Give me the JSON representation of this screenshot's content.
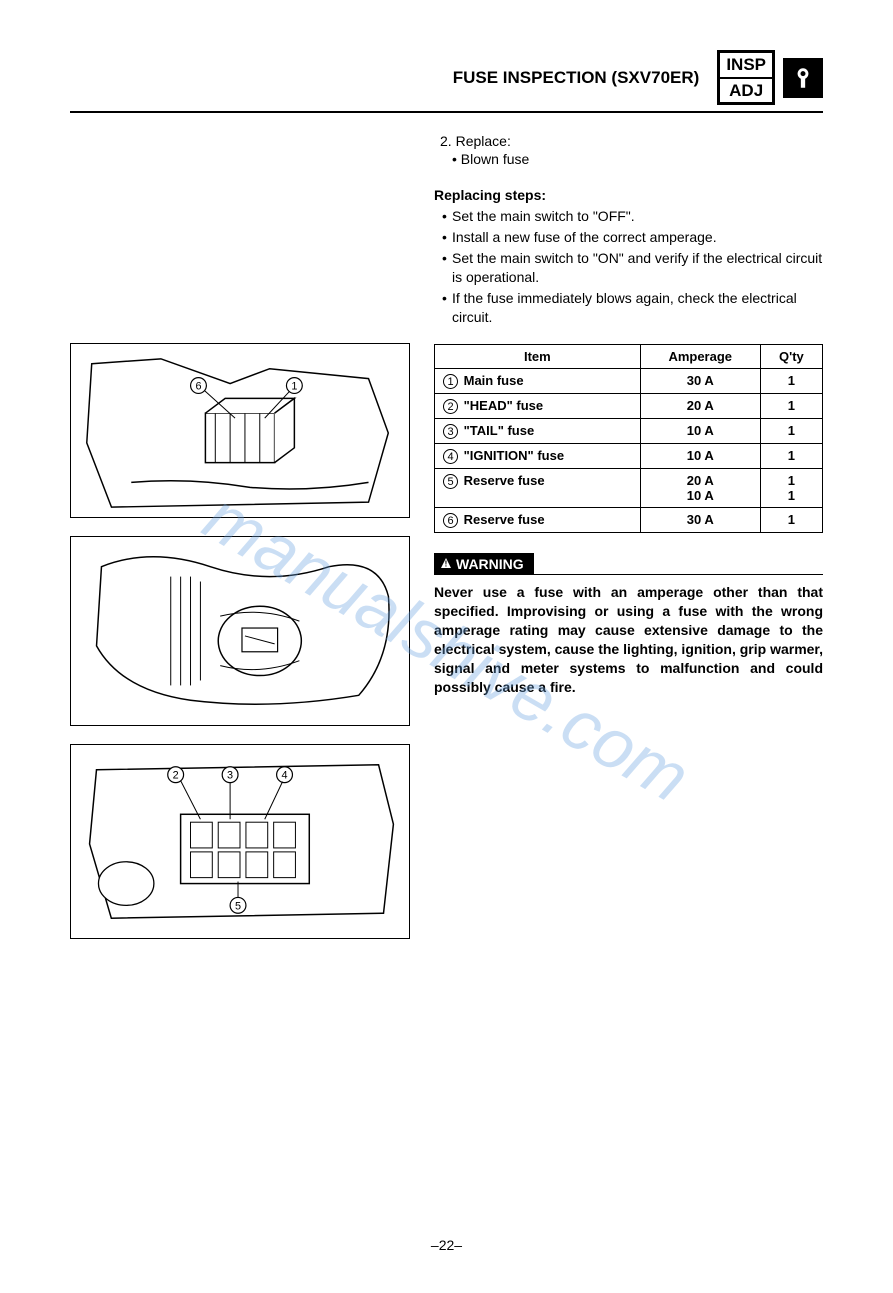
{
  "header": {
    "title": "FUSE INSPECTION (SXV70ER)",
    "box_top": "INSP",
    "box_bottom": "ADJ"
  },
  "replace": {
    "num": "2.",
    "label": "Replace:",
    "item": "Blown fuse"
  },
  "steps": {
    "heading": "Replacing steps:",
    "items": [
      "Set the main switch to \"OFF\".",
      "Install a new fuse of the correct amperage.",
      "Set the main switch to \"ON\" and verify if the electrical circuit is operational.",
      "If the fuse immediately blows again, check the electrical circuit."
    ]
  },
  "table": {
    "columns": [
      "Item",
      "Amperage",
      "Q'ty"
    ],
    "rows": [
      {
        "num": "1",
        "item": "Main fuse",
        "amp": "30 A",
        "qty": "1"
      },
      {
        "num": "2",
        "item": "\"HEAD\" fuse",
        "amp": "20 A",
        "qty": "1"
      },
      {
        "num": "3",
        "item": "\"TAIL\" fuse",
        "amp": "10 A",
        "qty": "1"
      },
      {
        "num": "4",
        "item": "\"IGNITION\" fuse",
        "amp": "10 A",
        "qty": "1"
      },
      {
        "num": "5",
        "item": "Reserve fuse",
        "amp": "20 A\n10 A",
        "qty": "1\n1"
      },
      {
        "num": "6",
        "item": "Reserve fuse",
        "amp": "30 A",
        "qty": "1"
      }
    ]
  },
  "warning": {
    "label": "WARNING",
    "text": "Never use a fuse with an amperage other than that specified. Improvising or using a fuse with the wrong amperage rating may cause extensive damage to the electrical system, cause the lighting, ignition, grip warmer, signal and meter systems to malfunction and could possibly cause a fire."
  },
  "watermark": "manualshive.com",
  "page_number": "–22–",
  "diagrams": {
    "d1_callouts": [
      "6",
      "1"
    ],
    "d3_callouts": [
      "2",
      "3",
      "4",
      "5"
    ]
  }
}
